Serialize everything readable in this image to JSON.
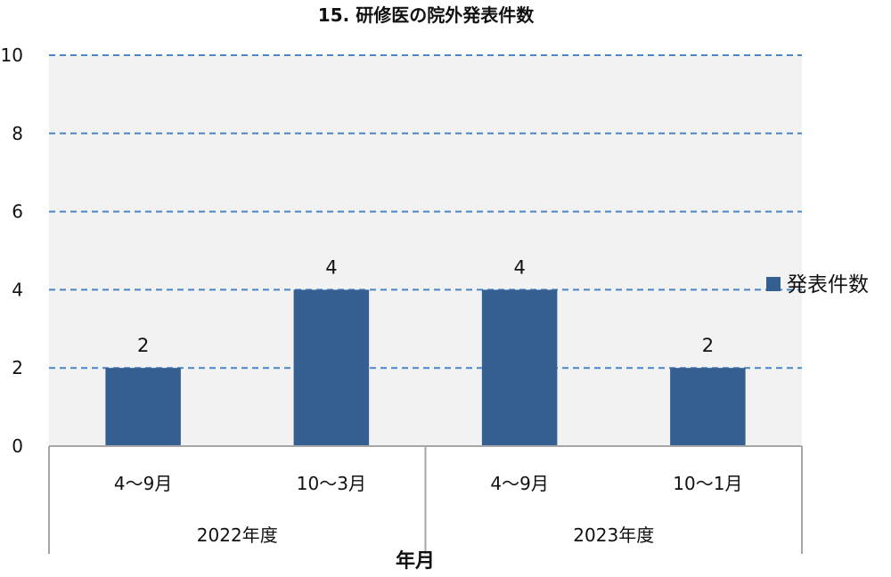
{
  "chart_data": {
    "type": "bar",
    "title": "15. 研修医の院外発表件数",
    "xlabel": "年月",
    "ylabel": "",
    "ylim": [
      0,
      10
    ],
    "yticks": [
      0,
      2,
      4,
      6,
      8,
      10
    ],
    "grid": true,
    "legend_position": "right",
    "categories": [
      "4〜9月",
      "10〜3月",
      "4〜9月",
      "10〜1月"
    ],
    "groups": [
      {
        "label": "2022年度",
        "span": 2
      },
      {
        "label": "2023年度",
        "span": 2
      }
    ],
    "series": [
      {
        "name": "発表件数",
        "values": [
          2,
          4,
          4,
          2
        ],
        "color": "#355f91"
      }
    ],
    "data_labels": true
  },
  "colors": {
    "plot_background": "#f2f2f2",
    "gridline": "#4a86c8",
    "axis": "#a6a6a6"
  }
}
